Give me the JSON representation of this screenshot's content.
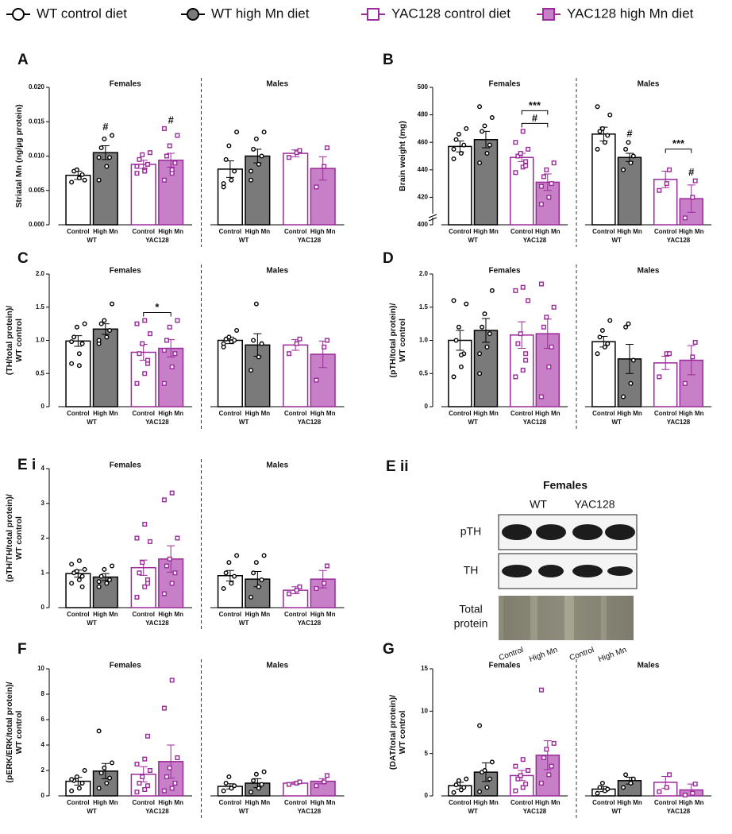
{
  "legend": [
    {
      "name": "WT control diet",
      "color": "#000000",
      "fill": "#ffffff",
      "marker": "circle"
    },
    {
      "name": "WT high Mn diet",
      "color": "#000000",
      "fill": "#7a7a7a",
      "marker": "circle"
    },
    {
      "name": "YAC128 control diet",
      "color": "#9b2a9b",
      "fill": "#ffffff",
      "marker": "square"
    },
    {
      "name": "YAC128 high Mn diet",
      "color": "#9b2a9b",
      "fill": "#c77fc7",
      "marker": "square"
    }
  ],
  "chart_data": [
    {
      "type": "bar",
      "label": "A",
      "ylabel": [
        "Striatal Mn (ng/µg protein)"
      ],
      "ylim": [
        0,
        0.02
      ],
      "yticks": [
        {
          "value": 0,
          "label": "0.000"
        },
        {
          "value": 0.005,
          "label": "0.005"
        },
        {
          "value": 0.01,
          "label": "0.010"
        },
        {
          "value": 0.015,
          "label": "0.015"
        },
        {
          "value": 0.02,
          "label": "0.020"
        }
      ],
      "sections": [
        "Females",
        "Males"
      ],
      "categories": [
        "Control",
        "High Mn"
      ],
      "groups": [
        "WT",
        "YAC128"
      ],
      "series": [
        {
          "values": [
            0.0072,
            0.0081
          ],
          "errors": [
            0.0006,
            0.0012
          ],
          "points": [
            [
              0.0062,
              0.0068,
              0.0073,
              0.0078,
              0.008,
              0.0065
            ],
            [
              0.0055,
              0.0065,
              0.0078,
              0.0095,
              0.0115,
              0.0135,
              0.006
            ]
          ]
        },
        {
          "values": [
            0.0105,
            0.01
          ],
          "errors": [
            0.001,
            0.001
          ],
          "points": [
            [
              0.0065,
              0.0085,
              0.0098,
              0.0112,
              0.0125,
              0.013,
              0.0098
            ],
            [
              0.0065,
              0.0088,
              0.01,
              0.011,
              0.0125,
              0.0135,
              0.0078
            ]
          ]
        },
        {
          "values": [
            0.0088,
            0.0104
          ],
          "errors": [
            0.0006,
            0.0005
          ],
          "points": [
            [
              0.0075,
              0.008,
              0.0088,
              0.0095,
              0.0102,
              0.0105,
              0.0085,
              0.0078
            ],
            [
              0.0098,
              0.0105,
              0.0108
            ]
          ]
        },
        {
          "values": [
            0.0094,
            0.0082
          ],
          "errors": [
            0.001,
            0.0017
          ],
          "points": [
            [
              0.0065,
              0.0075,
              0.009,
              0.01,
              0.0115,
              0.013,
              0.014,
              0.008
            ],
            [
              0.0055,
              0.0085,
              0.0112
            ]
          ]
        }
      ],
      "annotations": [
        {
          "text": "#",
          "section": 0,
          "bars": [
            1
          ]
        },
        {
          "text": "#",
          "section": 0,
          "bars": [
            3
          ]
        }
      ]
    },
    {
      "type": "bar",
      "label": "B",
      "ylabel": [
        "Brain weight (mg)"
      ],
      "ylim": [
        400,
        500
      ],
      "yticks": [
        400,
        420,
        440,
        460,
        480,
        500
      ],
      "axis_break": true,
      "sections": [
        "Females",
        "Males"
      ],
      "categories": [
        "Control",
        "High Mn"
      ],
      "groups": [
        "WT",
        "YAC128"
      ],
      "series": [
        {
          "values": [
            457,
            466
          ],
          "errors": [
            4,
            5
          ],
          "points": [
            [
              448,
              452,
              458,
              462,
              466,
              470,
              455
            ],
            [
              455,
              460,
              465,
              468,
              470,
              480,
              486
            ]
          ]
        },
        {
          "values": [
            462,
            449
          ],
          "errors": [
            6,
            3
          ],
          "points": [
            [
              445,
              452,
              458,
              468,
              472,
              478,
              486
            ],
            [
              440,
              445,
              450,
              455,
              460
            ]
          ]
        },
        {
          "values": [
            449,
            433
          ],
          "errors": [
            3,
            6
          ],
          "points": [
            [
              438,
              442,
              446,
              450,
              452,
              455,
              460,
              468,
              443
            ],
            [
              425,
              430,
              440
            ]
          ]
        },
        {
          "values": [
            431,
            419
          ],
          "errors": [
            6,
            10
          ],
          "points": [
            [
              415,
              420,
              430,
              435,
              440,
              445,
              428
            ],
            [
              405,
              420,
              432
            ]
          ]
        }
      ],
      "annotations": [
        {
          "text": "#",
          "section": 0,
          "bars": [
            2,
            3
          ]
        },
        {
          "text": "***",
          "section": 0,
          "bars": [
            2,
            3
          ]
        },
        {
          "text": "#",
          "section": 1,
          "bars": [
            1
          ]
        },
        {
          "text": "#",
          "section": 1,
          "bars": [
            3
          ]
        },
        {
          "text": "***",
          "section": 1,
          "bars": [
            2,
            3
          ]
        }
      ]
    },
    {
      "type": "bar",
      "label": "C",
      "ylabel": [
        "(TH/total protein)/",
        "WT control"
      ],
      "ylim": [
        0,
        2
      ],
      "yticks": [
        0,
        0.5,
        {
          "value": 1,
          "label": "1.0"
        },
        1.5,
        {
          "value": 2,
          "label": "2.0"
        }
      ],
      "sections": [
        "Females",
        "Males"
      ],
      "categories": [
        "Control",
        "High Mn"
      ],
      "groups": [
        "WT",
        "YAC128"
      ],
      "series": [
        {
          "values": [
            0.99,
            1.0
          ],
          "errors": [
            0.08,
            0.05
          ],
          "points": [
            [
              0.65,
              0.8,
              0.95,
              1.05,
              1.2,
              1.25,
              0.98,
              0.62
            ],
            [
              0.95,
              0.98,
              1.0,
              1.02,
              1.05,
              1.15,
              0.9
            ]
          ]
        },
        {
          "values": [
            1.17,
            0.93
          ],
          "errors": [
            0.08,
            0.17
          ],
          "points": [
            [
              0.95,
              1.05,
              1.15,
              1.25,
              1.3,
              1.55,
              1.0
            ],
            [
              0.55,
              0.75,
              0.95,
              1.0,
              1.55
            ]
          ]
        },
        {
          "values": [
            0.82,
            0.93
          ],
          "errors": [
            0.12,
            0.08
          ],
          "points": [
            [
              0.35,
              0.5,
              0.65,
              0.8,
              0.95,
              1.1,
              1.25,
              1.3,
              0.7
            ],
            [
              0.8,
              0.95,
              1.02
            ]
          ]
        },
        {
          "values": [
            0.88,
            0.79
          ],
          "errors": [
            0.13,
            0.2
          ],
          "points": [
            [
              0.35,
              0.6,
              0.8,
              1.0,
              1.2,
              1.3,
              0.85
            ],
            [
              0.4,
              0.9,
              1.0
            ]
          ]
        }
      ],
      "annotations": [
        {
          "text": "*",
          "section": 0,
          "bars": [
            2,
            3
          ]
        }
      ]
    },
    {
      "type": "bar",
      "label": "D",
      "ylabel": [
        "(pTH/total protein)/",
        "WT control"
      ],
      "ylim": [
        0,
        2
      ],
      "yticks": [
        0,
        0.5,
        {
          "value": 1,
          "label": "1.0"
        },
        1.5,
        {
          "value": 2,
          "label": "2.0"
        }
      ],
      "sections": [
        "Females",
        "Males"
      ],
      "categories": [
        "Control",
        "High Mn"
      ],
      "groups": [
        "WT",
        "YAC128"
      ],
      "series": [
        {
          "values": [
            1.0,
            0.98
          ],
          "errors": [
            0.15,
            0.08
          ],
          "points": [
            [
              0.45,
              0.6,
              0.8,
              1.0,
              1.2,
              1.55,
              1.6,
              0.78
            ],
            [
              0.8,
              0.9,
              0.95,
              1.05,
              1.15,
              1.3
            ]
          ]
        },
        {
          "values": [
            1.15,
            0.72
          ],
          "errors": [
            0.18,
            0.22
          ],
          "points": [
            [
              0.5,
              0.9,
              1.1,
              1.2,
              1.4,
              1.75,
              0.8
            ],
            [
              0.15,
              0.35,
              0.7,
              1.2,
              1.25
            ]
          ]
        },
        {
          "values": [
            1.08,
            0.66
          ],
          "errors": [
            0.2,
            0.1
          ],
          "points": [
            [
              0.45,
              0.55,
              0.8,
              0.95,
              1.1,
              1.6,
              1.75,
              1.8,
              0.7
            ],
            [
              0.45,
              0.8,
              0.8
            ]
          ]
        },
        {
          "values": [
            1.1,
            0.7
          ],
          "errors": [
            0.22,
            0.22
          ],
          "points": [
            [
              0.15,
              0.6,
              0.9,
              1.2,
              1.35,
              1.5,
              1.85
            ],
            [
              0.35,
              0.75,
              0.97
            ]
          ]
        }
      ],
      "annotations": []
    },
    {
      "type": "bar",
      "label": "E i",
      "ylabel": [
        "(pTH/TH/total protein)/",
        "WT control"
      ],
      "ylim": [
        0,
        4
      ],
      "yticks": [
        0,
        1,
        2,
        3,
        4
      ],
      "sections": [
        "Females",
        "Males"
      ],
      "categories": [
        "Control",
        "High Mn"
      ],
      "groups": [
        "WT",
        "YAC128"
      ],
      "series": [
        {
          "values": [
            0.98,
            0.92
          ],
          "errors": [
            0.1,
            0.15
          ],
          "points": [
            [
              0.7,
              0.8,
              0.9,
              1.0,
              1.05,
              1.1,
              1.25,
              1.35,
              0.6
            ],
            [
              0.55,
              0.7,
              0.9,
              1.0,
              1.3,
              1.5
            ]
          ]
        },
        {
          "values": [
            0.88,
            0.82
          ],
          "errors": [
            0.1,
            0.22
          ],
          "points": [
            [
              0.6,
              0.7,
              0.8,
              0.9,
              1.1,
              1.2,
              0.75
            ],
            [
              0.3,
              0.6,
              0.8,
              1.0,
              1.3,
              1.5
            ]
          ]
        },
        {
          "values": [
            1.15,
            0.5
          ],
          "errors": [
            0.22,
            0.1
          ],
          "points": [
            [
              0.3,
              0.6,
              0.8,
              1.0,
              1.3,
              1.9,
              2.0,
              2.4,
              0.7
            ],
            [
              0.4,
              0.5,
              0.6
            ]
          ]
        },
        {
          "values": [
            1.4,
            0.82
          ],
          "errors": [
            0.38,
            0.25
          ],
          "points": [
            [
              0.4,
              0.7,
              1.0,
              1.2,
              1.4,
              2.0,
              3.1,
              3.3
            ],
            [
              0.55,
              0.7,
              1.2
            ]
          ]
        }
      ],
      "annotations": []
    },
    {
      "type": "bar",
      "label": "F",
      "ylabel": [
        "(pERK/ERK/total protein)/",
        "WT control"
      ],
      "ylim": [
        0,
        10
      ],
      "yticks": [
        0,
        2,
        4,
        6,
        8,
        10
      ],
      "sections": [
        "Females",
        "Males"
      ],
      "categories": [
        "Control",
        "High Mn"
      ],
      "groups": [
        "WT",
        "YAC128"
      ],
      "series": [
        {
          "values": [
            1.15,
            0.75
          ],
          "errors": [
            0.3,
            0.2
          ],
          "points": [
            [
              0.4,
              0.6,
              1.0,
              1.2,
              1.5,
              2.0,
              1.3
            ],
            [
              0.4,
              0.6,
              0.8,
              1.0,
              1.5
            ]
          ]
        },
        {
          "values": [
            1.95,
            1.0
          ],
          "errors": [
            0.6,
            0.35
          ],
          "points": [
            [
              0.6,
              1.0,
              1.4,
              1.8,
              2.2,
              2.6,
              5.1
            ],
            [
              0.3,
              0.6,
              0.9,
              1.2,
              1.7,
              1.9
            ]
          ]
        },
        {
          "values": [
            1.7,
            1.0
          ],
          "errors": [
            0.6,
            0.1
          ],
          "points": [
            [
              0.3,
              0.5,
              0.8,
              1.0,
              1.5,
              2.0,
              2.5,
              2.9,
              4.7
            ],
            [
              0.9,
              1.0,
              1.1
            ]
          ]
        },
        {
          "values": [
            2.7,
            1.15
          ],
          "errors": [
            1.3,
            0.2
          ],
          "points": [
            [
              0.4,
              0.6,
              1.0,
              1.5,
              2.2,
              3.0,
              6.9,
              9.1
            ],
            [
              0.8,
              1.1,
              1.6
            ]
          ]
        }
      ],
      "annotations": []
    },
    {
      "type": "bar",
      "label": "G",
      "ylabel": [
        "(DAT/total protein)/",
        "WT control"
      ],
      "ylim": [
        0,
        15
      ],
      "yticks": [
        0,
        5,
        10,
        15
      ],
      "sections": [
        "Females",
        "Males"
      ],
      "categories": [
        "Control",
        "High Mn"
      ],
      "groups": [
        "WT",
        "YAC128"
      ],
      "series": [
        {
          "values": [
            1.2,
            0.8
          ],
          "errors": [
            0.4,
            0.3
          ],
          "points": [
            [
              0.4,
              0.7,
              1.0,
              1.3,
              1.8,
              2.0
            ],
            [
              0.3,
              0.6,
              0.8,
              1.0,
              1.5
            ]
          ]
        },
        {
          "values": [
            2.8,
            1.8
          ],
          "errors": [
            1.1,
            0.4
          ],
          "points": [
            [
              0.5,
              1.0,
              2.0,
              2.8,
              3.0,
              4.0,
              8.3
            ],
            [
              1.0,
              1.5,
              2.0,
              2.5
            ]
          ]
        },
        {
          "values": [
            2.4,
            1.6
          ],
          "errors": [
            0.6,
            0.7
          ],
          "points": [
            [
              0.6,
              1.0,
              1.4,
              2.0,
              2.4,
              3.0,
              3.5,
              4.3
            ],
            [
              0.5,
              1.0,
              2.5
            ]
          ]
        },
        {
          "values": [
            4.8,
            0.7
          ],
          "errors": [
            1.7,
            0.7
          ],
          "points": [
            [
              1.5,
              2.5,
              3.5,
              4.5,
              5.5,
              6.2,
              12.5
            ],
            [
              0.1,
              0.3,
              1.4
            ]
          ]
        }
      ],
      "annotations": []
    }
  ],
  "blot": {
    "label": "E ii",
    "title": "Females",
    "groups": [
      "WT",
      "YAC128"
    ],
    "row_labels": [
      "pTH",
      "TH"
    ],
    "total_label": [
      "Total",
      "protein"
    ],
    "lanes": [
      "Control",
      "High Mn",
      "Control",
      "High Mn"
    ]
  }
}
